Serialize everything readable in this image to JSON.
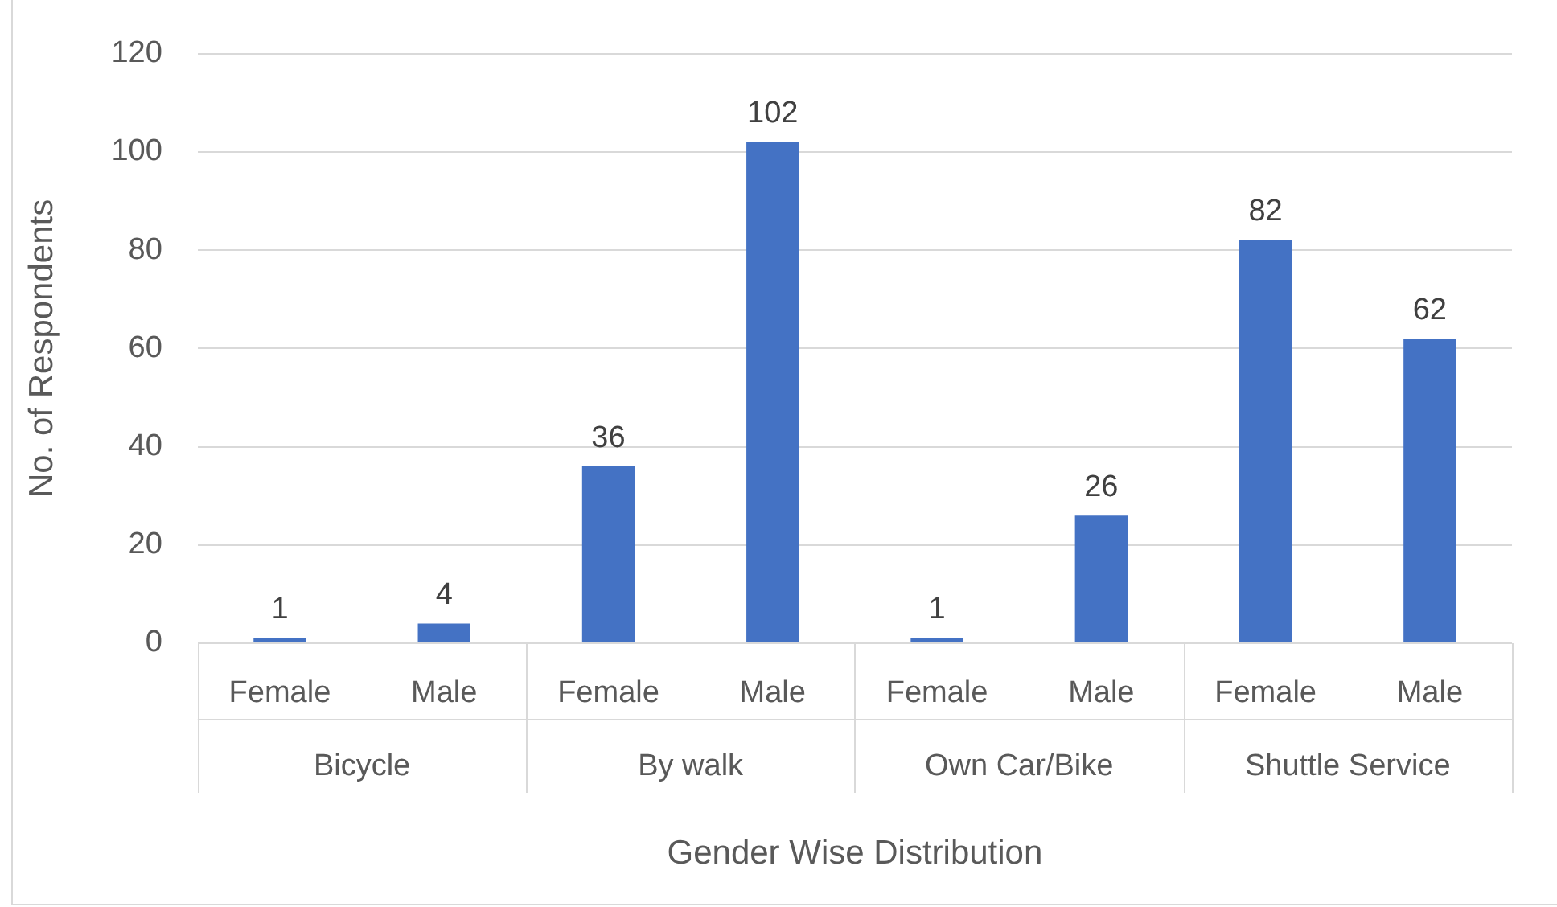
{
  "chart_data": {
    "type": "bar",
    "xlabel": "Gender Wise Distribution",
    "ylabel": "No. of Respondents",
    "categories": [
      "Female",
      "Male",
      "Female",
      "Male",
      "Female",
      "Male",
      "Female",
      "Male"
    ],
    "annotations": [
      "Bicycle",
      "By walk",
      "Own Car/Bike",
      "Shuttle Service"
    ],
    "values": [
      1,
      4,
      36,
      102,
      1,
      26,
      82,
      62
    ],
    "color": "#4472c4",
    "ylim": [
      0,
      120
    ],
    "yticks": [
      0,
      20,
      40,
      60,
      80,
      100,
      120
    ],
    "grid": "y",
    "data_labels": true,
    "legend": false
  }
}
